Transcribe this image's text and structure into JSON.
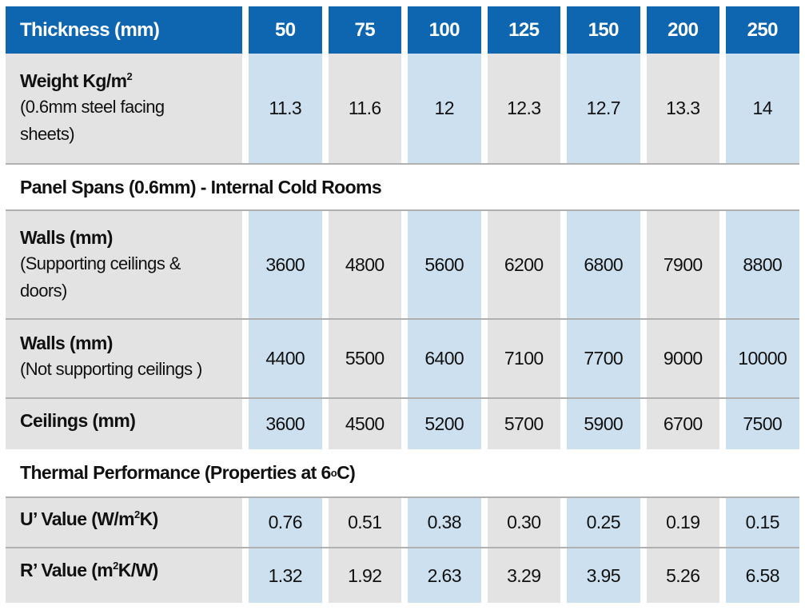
{
  "header": {
    "label": "Thickness (mm)",
    "thicknesses": [
      "50",
      "75",
      "100",
      "125",
      "150",
      "200",
      "250"
    ]
  },
  "column_colors": {
    "header": "#0e66b0",
    "odd": "#cde0ef",
    "even": "#e3e3e3",
    "label": "#e3e3e3"
  },
  "weight": {
    "title": "Weight Kg/m",
    "title_sup": "2",
    "note_line1": "(0.6mm steel facing",
    "note_line2": "sheets)",
    "values": [
      "11.3",
      "11.6",
      "12",
      "12.3",
      "12.7",
      "13.3",
      "14"
    ]
  },
  "spans_section": {
    "title": "Panel Spans (0.6mm) - Internal Cold Rooms"
  },
  "walls_supporting": {
    "title": "Walls (mm)",
    "note_line1": "(Supporting ceilings &",
    "note_line2": "doors)",
    "values": [
      "3600",
      "4800",
      "5600",
      "6200",
      "6800",
      "7900",
      "8800"
    ]
  },
  "walls_not_supporting": {
    "title": "Walls (mm)",
    "note_line1": "(Not supporting ceilings )",
    "values": [
      "4400",
      "5500",
      "6400",
      "7100",
      "7700",
      "9000",
      "10000"
    ]
  },
  "ceilings": {
    "title": "Ceilings (mm)",
    "values": [
      "3600",
      "4500",
      "5200",
      "5700",
      "5900",
      "6700",
      "7500"
    ]
  },
  "thermal_section": {
    "title": "Thermal Performance (Properties at 6",
    "title_sup": "o",
    "title_end": "C)"
  },
  "u_value": {
    "title_a": "U’ Value (W/m",
    "title_sup": "2",
    "title_b": "K)",
    "values": [
      "0.76",
      "0.51",
      "0.38",
      "0.30",
      "0.25",
      "0.19",
      "0.15"
    ]
  },
  "r_value": {
    "title_a": "R’ Value (m",
    "title_sup": "2",
    "title_b": "K/W)",
    "values": [
      "1.32",
      "1.92",
      "2.63",
      "3.29",
      "3.95",
      "5.26",
      "6.58"
    ]
  }
}
